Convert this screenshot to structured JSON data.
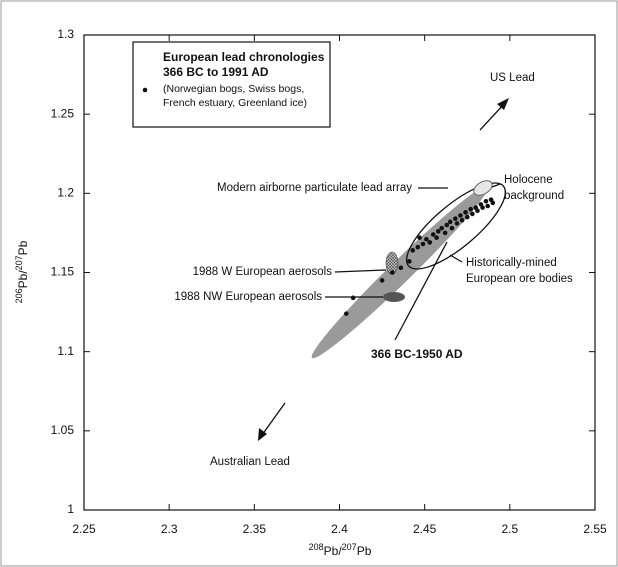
{
  "chart_data": {
    "type": "scatter",
    "x_label": [
      "208",
      "Pb/",
      "207",
      "Pb"
    ],
    "y_label": [
      "206",
      "Pb/",
      "207",
      "Pb"
    ],
    "xlim": [
      2.25,
      2.55
    ],
    "xticks": [
      2.25,
      2.3,
      2.35,
      2.4,
      2.45,
      2.5,
      2.55
    ],
    "ylim": [
      1,
      1.3
    ],
    "yticks": [
      1,
      1.05,
      1.1,
      1.15,
      1.2,
      1.25,
      1.3
    ],
    "legend": {
      "title": [
        "European lead chronologies",
        "366 BC to 1991 AD"
      ],
      "note": [
        "(Norwegian bogs, Swiss bogs,",
        "French estuary, Greenland ice)"
      ]
    },
    "series": [
      {
        "color": "#111111",
        "x": [
          2.404,
          2.408,
          2.425,
          2.431,
          2.436,
          2.441,
          2.443,
          2.446,
          2.447,
          2.449,
          2.451,
          2.453,
          2.455,
          2.457,
          2.458,
          2.46,
          2.462,
          2.463,
          2.465,
          2.466,
          2.468,
          2.469,
          2.471,
          2.472,
          2.474,
          2.475,
          2.477,
          2.478,
          2.48,
          2.481,
          2.483,
          2.484,
          2.486,
          2.487,
          2.489,
          2.49
        ],
        "y": [
          1.124,
          1.134,
          1.145,
          1.15,
          1.153,
          1.157,
          1.164,
          1.166,
          1.172,
          1.168,
          1.171,
          1.169,
          1.174,
          1.172,
          1.176,
          1.178,
          1.175,
          1.18,
          1.182,
          1.178,
          1.184,
          1.181,
          1.186,
          1.183,
          1.188,
          1.185,
          1.19,
          1.187,
          1.191,
          1.189,
          1.193,
          1.191,
          1.195,
          1.192,
          1.196,
          1.194
        ]
      }
    ],
    "annotations": {
      "us_lead": "US Lead",
      "australian_lead": "Australian Lead",
      "array": "Modern airborne particulate lead array",
      "holocene": [
        "Holocene",
        "background"
      ],
      "ore": [
        "Historically-mined",
        "European ore bodies"
      ],
      "w_aerosols": "1988 W European aerosols",
      "nw_aerosols": "1988 NW European aerosols",
      "period": "366 BC-1950 AD"
    }
  }
}
